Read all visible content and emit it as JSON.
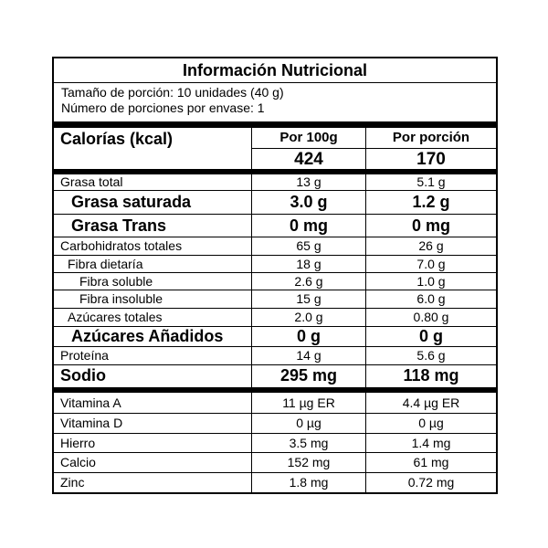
{
  "title": "Información Nutricional",
  "serving_size": "Tamaño de porción: 10 unidades (40 g)",
  "servings_per_container": "Número de porciones por envase: 1",
  "calories": {
    "label": "Calorías (kcal)",
    "col1_header": "Por 100g",
    "col2_header": "Por porción",
    "per100": "424",
    "perServing": "170"
  },
  "nutrients": [
    {
      "name": "Grasa total",
      "per100": "13 g",
      "perServing": "5.1 g",
      "style": "n",
      "indent": 0,
      "h": 18
    },
    {
      "name": "Grasa saturada",
      "per100": "3.0 g",
      "perServing": "1.2 g",
      "style": "b",
      "indent": 1,
      "h": 26
    },
    {
      "name": "Grasa Trans",
      "per100": "0 mg",
      "perServing": "0 mg",
      "style": "b",
      "indent": 1,
      "h": 25
    },
    {
      "name": "Carbohidratos totales",
      "per100": "65 g",
      "perServing": "26 g",
      "style": "n",
      "indent": 0,
      "h": 20
    },
    {
      "name": "Fibra dietaría",
      "per100": "18 g",
      "perServing": "7.0 g",
      "style": "n",
      "indent": 1,
      "h": 19
    },
    {
      "name": "Fibra soluble",
      "per100": "2.6 g",
      "perServing": "1.0 g",
      "style": "n",
      "indent": 2,
      "h": 19
    },
    {
      "name": "Fibra insoluble",
      "per100": "15 g",
      "perServing": "6.0 g",
      "style": "n",
      "indent": 2,
      "h": 20
    },
    {
      "name": "Azúcares totales",
      "per100": "2.0 g",
      "perServing": "0.80 g",
      "style": "n",
      "indent": 1,
      "h": 20
    },
    {
      "name": "Azúcares Añadidos",
      "per100": "0 g",
      "perServing": "0 g",
      "style": "b",
      "indent": 1,
      "h": 22
    },
    {
      "name": "Proteína",
      "per100": "14 g",
      "perServing": "5.6 g",
      "style": "n",
      "indent": 0,
      "h": 20
    },
    {
      "name": "Sodio",
      "per100": "295 mg",
      "perServing": "118 mg",
      "style": "b",
      "indent": 0,
      "h": 24
    }
  ],
  "micronutrients": [
    {
      "name": "Vitamina A",
      "per100": "11 µg ER",
      "perServing": "4.4 µg ER"
    },
    {
      "name": "Vitamina D",
      "per100": "0 µg",
      "perServing": "0 µg"
    },
    {
      "name": "Hierro",
      "per100": "3.5 mg",
      "perServing": "1.4 mg"
    },
    {
      "name": "Calcio",
      "per100": "152 mg",
      "perServing": "61 mg"
    },
    {
      "name": "Zinc",
      "per100": "1.8 mg",
      "perServing": "0.72 mg"
    }
  ]
}
